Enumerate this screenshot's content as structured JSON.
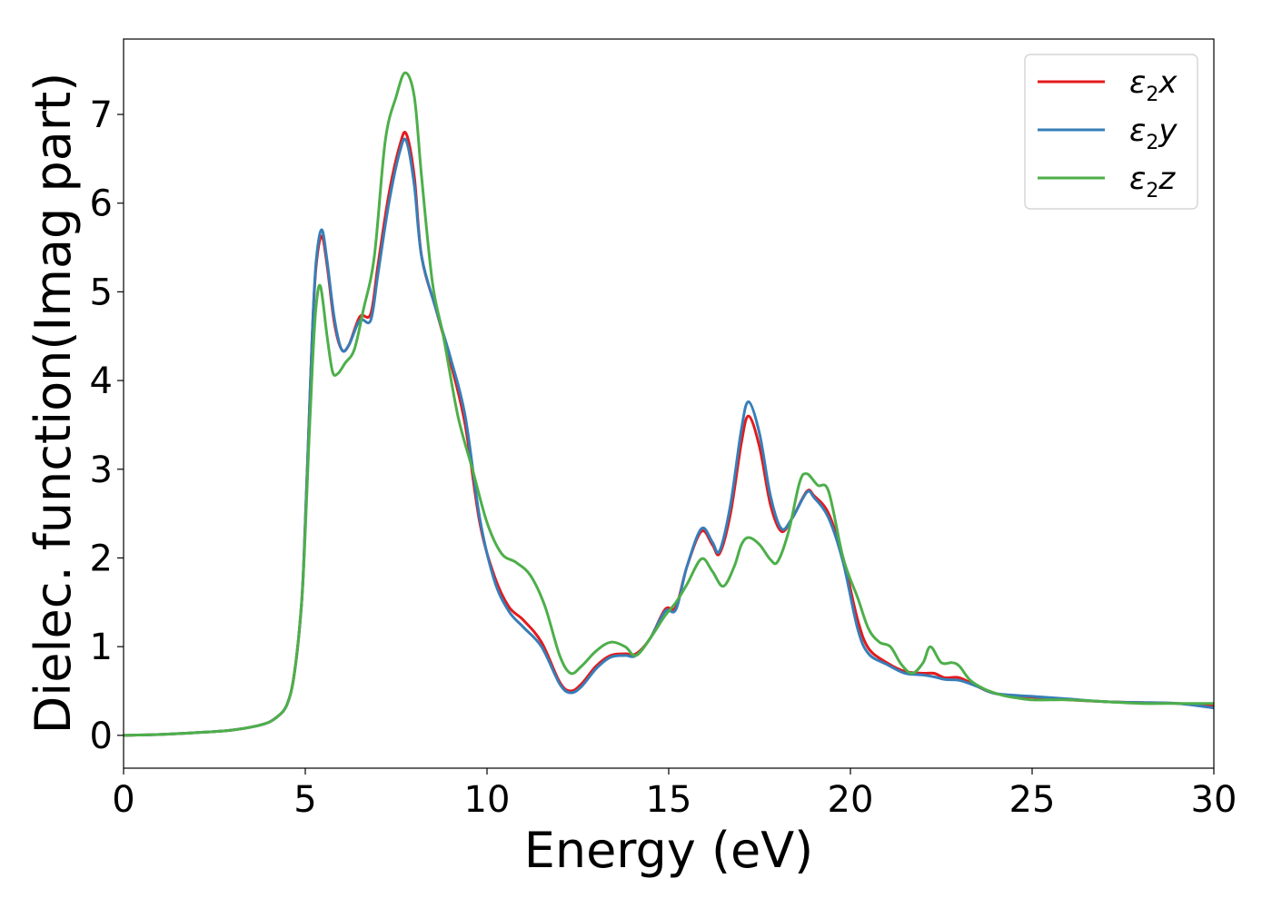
{
  "chart_data": {
    "type": "line",
    "xlabel": "Energy (eV)",
    "ylabel": "Dielec. function(Imag part)",
    "xlim": [
      0,
      30
    ],
    "ylim": [
      -0.37,
      7.85
    ],
    "xticks": [
      0,
      5,
      10,
      15,
      20,
      25,
      30
    ],
    "yticks": [
      0,
      1,
      2,
      3,
      4,
      5,
      6,
      7
    ],
    "grid": false,
    "legend_position": "top-right",
    "series": [
      {
        "name": "ε₂x",
        "legend": {
          "symbol": "ε",
          "sub": "2",
          "axis": "x"
        },
        "color": "#e41a1c",
        "points": [
          [
            0,
            0
          ],
          [
            1,
            0.01
          ],
          [
            2,
            0.03
          ],
          [
            3,
            0.06
          ],
          [
            3.8,
            0.12
          ],
          [
            4.2,
            0.2
          ],
          [
            4.5,
            0.35
          ],
          [
            4.7,
            0.7
          ],
          [
            4.9,
            1.5
          ],
          [
            5.0,
            2.4
          ],
          [
            5.1,
            3.5
          ],
          [
            5.2,
            4.6
          ],
          [
            5.3,
            5.3
          ],
          [
            5.45,
            5.63
          ],
          [
            5.6,
            5.3
          ],
          [
            5.8,
            4.65
          ],
          [
            6.0,
            4.35
          ],
          [
            6.2,
            4.4
          ],
          [
            6.5,
            4.72
          ],
          [
            6.8,
            4.75
          ],
          [
            7.0,
            5.3
          ],
          [
            7.3,
            6.1
          ],
          [
            7.6,
            6.65
          ],
          [
            7.78,
            6.78
          ],
          [
            8.0,
            6.3
          ],
          [
            8.2,
            5.4
          ],
          [
            8.6,
            4.8
          ],
          [
            9.0,
            4.2
          ],
          [
            9.4,
            3.5
          ],
          [
            9.8,
            2.4
          ],
          [
            10.2,
            1.8
          ],
          [
            10.6,
            1.45
          ],
          [
            11.0,
            1.3
          ],
          [
            11.5,
            1.05
          ],
          [
            12.0,
            0.6
          ],
          [
            12.3,
            0.5
          ],
          [
            12.6,
            0.58
          ],
          [
            13.0,
            0.78
          ],
          [
            13.4,
            0.9
          ],
          [
            13.8,
            0.92
          ],
          [
            14.1,
            0.92
          ],
          [
            14.5,
            1.1
          ],
          [
            14.9,
            1.42
          ],
          [
            15.2,
            1.45
          ],
          [
            15.5,
            1.9
          ],
          [
            15.9,
            2.3
          ],
          [
            16.2,
            2.15
          ],
          [
            16.4,
            2.05
          ],
          [
            16.7,
            2.5
          ],
          [
            17.0,
            3.3
          ],
          [
            17.2,
            3.6
          ],
          [
            17.5,
            3.25
          ],
          [
            17.8,
            2.6
          ],
          [
            18.1,
            2.3
          ],
          [
            18.4,
            2.45
          ],
          [
            18.8,
            2.75
          ],
          [
            19.0,
            2.7
          ],
          [
            19.4,
            2.5
          ],
          [
            19.8,
            2.0
          ],
          [
            20.2,
            1.3
          ],
          [
            20.5,
            0.98
          ],
          [
            21.0,
            0.82
          ],
          [
            21.5,
            0.72
          ],
          [
            22.0,
            0.7
          ],
          [
            22.3,
            0.7
          ],
          [
            22.6,
            0.65
          ],
          [
            23.0,
            0.65
          ],
          [
            23.5,
            0.55
          ],
          [
            24.0,
            0.47
          ],
          [
            25.0,
            0.43
          ],
          [
            26.0,
            0.4
          ],
          [
            27.0,
            0.38
          ],
          [
            28.0,
            0.37
          ],
          [
            29.0,
            0.36
          ],
          [
            30.0,
            0.34
          ]
        ]
      },
      {
        "name": "ε₂y",
        "legend": {
          "symbol": "ε",
          "sub": "2",
          "axis": "y"
        },
        "color": "#377eb8",
        "points": [
          [
            0,
            0
          ],
          [
            1,
            0.01
          ],
          [
            2,
            0.03
          ],
          [
            3,
            0.06
          ],
          [
            3.8,
            0.12
          ],
          [
            4.2,
            0.2
          ],
          [
            4.5,
            0.35
          ],
          [
            4.7,
            0.7
          ],
          [
            4.9,
            1.5
          ],
          [
            5.0,
            2.4
          ],
          [
            5.1,
            3.5
          ],
          [
            5.2,
            4.6
          ],
          [
            5.3,
            5.35
          ],
          [
            5.45,
            5.7
          ],
          [
            5.6,
            5.35
          ],
          [
            5.8,
            4.7
          ],
          [
            6.0,
            4.35
          ],
          [
            6.2,
            4.4
          ],
          [
            6.5,
            4.68
          ],
          [
            6.8,
            4.68
          ],
          [
            7.0,
            5.2
          ],
          [
            7.3,
            6.0
          ],
          [
            7.6,
            6.58
          ],
          [
            7.78,
            6.7
          ],
          [
            8.0,
            6.2
          ],
          [
            8.2,
            5.4
          ],
          [
            8.6,
            4.8
          ],
          [
            9.0,
            4.25
          ],
          [
            9.4,
            3.6
          ],
          [
            9.8,
            2.45
          ],
          [
            10.2,
            1.75
          ],
          [
            10.6,
            1.4
          ],
          [
            11.0,
            1.22
          ],
          [
            11.5,
            1.0
          ],
          [
            12.0,
            0.58
          ],
          [
            12.3,
            0.48
          ],
          [
            12.6,
            0.55
          ],
          [
            13.0,
            0.75
          ],
          [
            13.4,
            0.88
          ],
          [
            13.8,
            0.9
          ],
          [
            14.1,
            0.9
          ],
          [
            14.5,
            1.1
          ],
          [
            14.9,
            1.4
          ],
          [
            15.2,
            1.42
          ],
          [
            15.5,
            1.9
          ],
          [
            15.9,
            2.33
          ],
          [
            16.2,
            2.18
          ],
          [
            16.4,
            2.08
          ],
          [
            16.7,
            2.6
          ],
          [
            17.0,
            3.45
          ],
          [
            17.2,
            3.76
          ],
          [
            17.5,
            3.4
          ],
          [
            17.8,
            2.7
          ],
          [
            18.1,
            2.33
          ],
          [
            18.4,
            2.45
          ],
          [
            18.8,
            2.74
          ],
          [
            19.0,
            2.68
          ],
          [
            19.4,
            2.45
          ],
          [
            19.8,
            1.95
          ],
          [
            20.2,
            1.2
          ],
          [
            20.5,
            0.92
          ],
          [
            21.0,
            0.8
          ],
          [
            21.5,
            0.7
          ],
          [
            22.0,
            0.68
          ],
          [
            22.3,
            0.66
          ],
          [
            22.6,
            0.63
          ],
          [
            23.0,
            0.62
          ],
          [
            23.5,
            0.55
          ],
          [
            24.0,
            0.47
          ],
          [
            25.0,
            0.44
          ],
          [
            26.0,
            0.41
          ],
          [
            27.0,
            0.38
          ],
          [
            28.0,
            0.37
          ],
          [
            29.0,
            0.36
          ],
          [
            30.0,
            0.31
          ]
        ]
      },
      {
        "name": "ε₂z",
        "legend": {
          "symbol": "ε",
          "sub": "2",
          "axis": "z"
        },
        "color": "#4daf4a",
        "points": [
          [
            0,
            0
          ],
          [
            1,
            0.01
          ],
          [
            2,
            0.03
          ],
          [
            3,
            0.06
          ],
          [
            3.8,
            0.12
          ],
          [
            4.2,
            0.2
          ],
          [
            4.5,
            0.35
          ],
          [
            4.7,
            0.7
          ],
          [
            4.9,
            1.5
          ],
          [
            5.0,
            2.3
          ],
          [
            5.1,
            3.3
          ],
          [
            5.2,
            4.2
          ],
          [
            5.3,
            4.85
          ],
          [
            5.42,
            5.06
          ],
          [
            5.6,
            4.5
          ],
          [
            5.75,
            4.1
          ],
          [
            5.9,
            4.08
          ],
          [
            6.1,
            4.2
          ],
          [
            6.35,
            4.35
          ],
          [
            6.6,
            4.8
          ],
          [
            6.9,
            5.4
          ],
          [
            7.2,
            6.7
          ],
          [
            7.5,
            7.2
          ],
          [
            7.75,
            7.47
          ],
          [
            8.0,
            7.2
          ],
          [
            8.2,
            6.3
          ],
          [
            8.5,
            5.1
          ],
          [
            8.8,
            4.5
          ],
          [
            9.2,
            3.6
          ],
          [
            9.6,
            3.0
          ],
          [
            10.0,
            2.4
          ],
          [
            10.4,
            2.05
          ],
          [
            10.8,
            1.95
          ],
          [
            11.2,
            1.8
          ],
          [
            11.6,
            1.45
          ],
          [
            12.0,
            0.9
          ],
          [
            12.3,
            0.7
          ],
          [
            12.6,
            0.78
          ],
          [
            13.0,
            0.95
          ],
          [
            13.4,
            1.05
          ],
          [
            13.8,
            1.0
          ],
          [
            14.1,
            0.9
          ],
          [
            14.5,
            1.1
          ],
          [
            14.9,
            1.35
          ],
          [
            15.2,
            1.5
          ],
          [
            15.5,
            1.7
          ],
          [
            15.9,
            1.99
          ],
          [
            16.2,
            1.85
          ],
          [
            16.5,
            1.68
          ],
          [
            16.8,
            1.9
          ],
          [
            17.0,
            2.15
          ],
          [
            17.2,
            2.23
          ],
          [
            17.5,
            2.15
          ],
          [
            17.8,
            1.98
          ],
          [
            18.0,
            1.96
          ],
          [
            18.3,
            2.3
          ],
          [
            18.6,
            2.85
          ],
          [
            18.8,
            2.95
          ],
          [
            19.1,
            2.82
          ],
          [
            19.4,
            2.75
          ],
          [
            19.8,
            2.0
          ],
          [
            20.2,
            1.55
          ],
          [
            20.5,
            1.2
          ],
          [
            20.8,
            1.05
          ],
          [
            21.1,
            1.0
          ],
          [
            21.4,
            0.8
          ],
          [
            21.7,
            0.7
          ],
          [
            22.0,
            0.82
          ],
          [
            22.2,
            1.0
          ],
          [
            22.5,
            0.82
          ],
          [
            22.8,
            0.82
          ],
          [
            23.0,
            0.78
          ],
          [
            23.3,
            0.62
          ],
          [
            23.7,
            0.52
          ],
          [
            24.2,
            0.45
          ],
          [
            24.6,
            0.42
          ],
          [
            25.0,
            0.4
          ],
          [
            25.5,
            0.4
          ],
          [
            26.0,
            0.4
          ],
          [
            27.0,
            0.38
          ],
          [
            28.0,
            0.36
          ],
          [
            29.0,
            0.36
          ],
          [
            30.0,
            0.36
          ]
        ]
      }
    ]
  }
}
